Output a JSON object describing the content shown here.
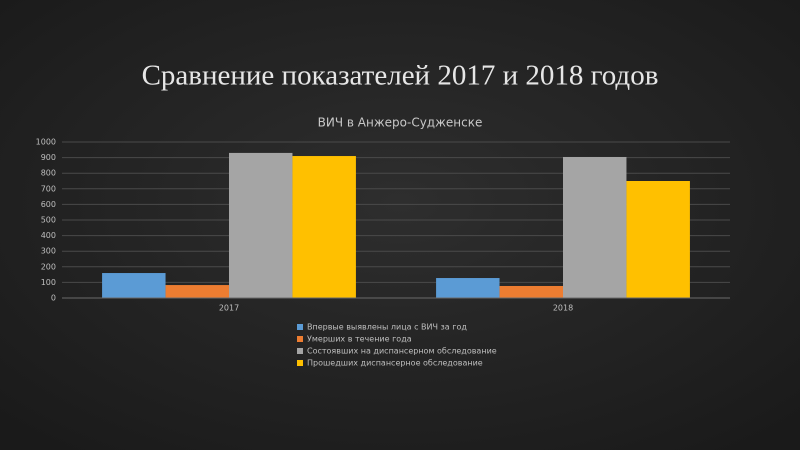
{
  "slide_title": "Сравнение показателей 2017 и 2018 годов",
  "chart_data": {
    "type": "bar",
    "title": "ВИЧ в Анжеро-Судженске",
    "categories": [
      "2017",
      "2018"
    ],
    "series": [
      {
        "name": "Впервые выявлены лица с ВИЧ за год",
        "color": "#5b9bd5",
        "values": [
          160,
          128
        ]
      },
      {
        "name": "Умерших в течение года",
        "color": "#ed7d31",
        "values": [
          83,
          77
        ]
      },
      {
        "name": "Состоявших на диспансерном обследование",
        "color": "#a5a5a5",
        "values": [
          930,
          904
        ]
      },
      {
        "name": "Прошедших диспансерное обследование",
        "color": "#ffc000",
        "values": [
          910,
          750
        ]
      }
    ],
    "ylim": [
      0,
      1000
    ],
    "yticks": [
      0,
      100,
      200,
      300,
      400,
      500,
      600,
      700,
      800,
      900,
      1000
    ],
    "grid": true,
    "legend": "bottom"
  }
}
